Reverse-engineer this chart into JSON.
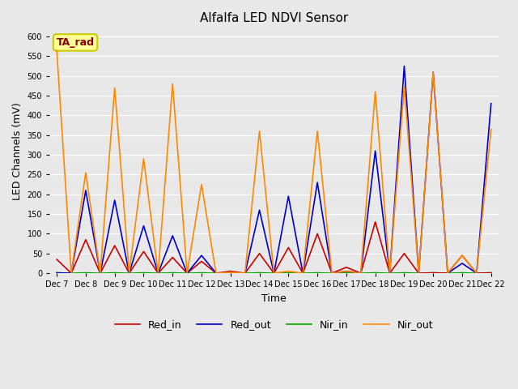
{
  "title": "Alfalfa LED NDVI Sensor",
  "xlabel": "Time",
  "ylabel": "LED Channels (mV)",
  "ylim": [
    0,
    620
  ],
  "yticks": [
    0,
    50,
    100,
    150,
    200,
    250,
    300,
    350,
    400,
    450,
    500,
    550,
    600
  ],
  "annotation_text": "TA_rad",
  "annotation_color": "#8B0000",
  "annotation_box_color": "#FFFF99",
  "annotation_box_edge": "#CCCC00",
  "background_color": "#E8E8E8",
  "grid_color": "#FFFFFF",
  "x_labels": [
    "Dec 7",
    "Dec 8",
    "Dec 9",
    "Dec 10",
    "Dec 11",
    "Dec 12",
    "Dec 13",
    "Dec 14",
    "Dec 15",
    "Dec 16",
    "Dec 17",
    "Dec 18",
    "Dec 19",
    "Dec 20",
    "Dec 21",
    "Dec 22"
  ],
  "x_ticks": [
    0,
    2,
    4,
    6,
    8,
    10,
    12,
    14,
    16,
    18,
    20,
    22,
    24,
    26,
    28,
    30
  ],
  "Red_in_x": [
    0,
    0.5,
    1,
    2,
    2.5,
    3,
    4,
    4.5,
    5,
    6,
    6.5,
    7,
    8,
    8.5,
    9,
    10,
    10.5,
    11,
    12,
    12.5,
    13,
    14,
    14.5,
    15,
    16,
    16.5,
    17,
    18,
    18.5,
    19,
    20,
    20.5,
    21,
    22,
    22.5,
    23,
    24,
    24.5,
    25,
    26,
    26.5,
    27,
    28,
    28.5,
    29,
    30
  ],
  "Red_in_x2": [
    0,
    1,
    2,
    3,
    4,
    5,
    6,
    7,
    8,
    9,
    10,
    11,
    12,
    13,
    14,
    15,
    16,
    17,
    18,
    19,
    20,
    21,
    22,
    23,
    24,
    25,
    26,
    27,
    28,
    29,
    30
  ],
  "Red_in": [
    35,
    0,
    85,
    0,
    70,
    0,
    55,
    0,
    40,
    0,
    30,
    0,
    5,
    0,
    50,
    0,
    65,
    0,
    100,
    0,
    15,
    0,
    130,
    0,
    50,
    0,
    1,
    0,
    45,
    0,
    1
  ],
  "Red_out": [
    1,
    0,
    210,
    0,
    185,
    0,
    120,
    0,
    95,
    0,
    45,
    0,
    1,
    0,
    160,
    0,
    195,
    0,
    230,
    0,
    5,
    0,
    310,
    0,
    525,
    0,
    510,
    0,
    25,
    0,
    430
  ],
  "Nir_in": [
    1,
    0,
    1,
    0,
    1,
    0,
    1,
    0,
    1,
    0,
    1,
    0,
    1,
    0,
    1,
    0,
    1,
    0,
    1,
    0,
    1,
    0,
    1,
    0,
    1,
    0,
    1,
    0,
    1,
    0,
    1
  ],
  "Nir_out": [
    565,
    0,
    255,
    0,
    470,
    0,
    290,
    0,
    480,
    0,
    225,
    0,
    2,
    0,
    360,
    0,
    5,
    0,
    360,
    0,
    5,
    0,
    460,
    0,
    475,
    0,
    510,
    0,
    45,
    0,
    365
  ],
  "Red_in_color": "#CC0000",
  "Red_out_color": "#0000CC",
  "Nir_in_color": "#00AA00",
  "Nir_out_color": "#FF8800",
  "line_width": 1.2
}
